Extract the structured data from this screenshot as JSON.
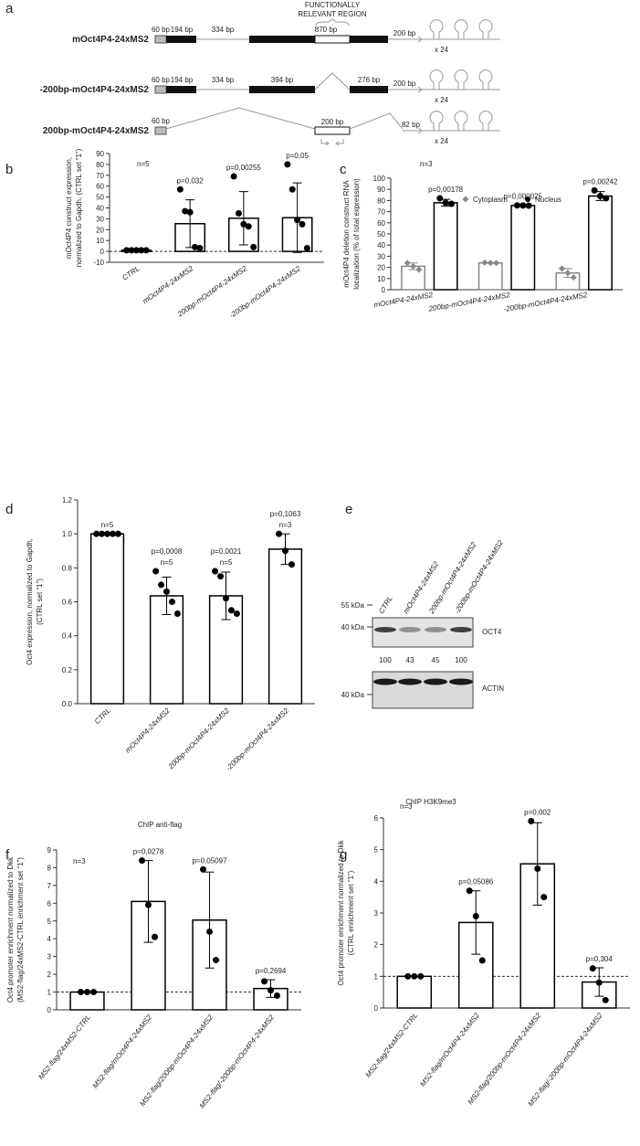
{
  "diagram": {
    "panel": "a",
    "region_label": [
      "FUNCTIONALLY",
      "RELEVANT REGION"
    ],
    "constructs": [
      {
        "name": "mOct4P4-24xMS2",
        "segments": [
          "60 bp",
          "194 bp",
          "334 bp",
          "870 bp",
          "200 bp"
        ],
        "repeat": "x 24"
      },
      {
        "name": "-200bp-mOct4P4-24xMS2",
        "segments": [
          "60 bp",
          "194 bp",
          "334 bp",
          "394 bp",
          "276 bp",
          "200 bp"
        ],
        "repeat": "x 24"
      },
      {
        "name": "200bp-mOct4P4-24xMS2",
        "segments": [
          "60 bp",
          "200 bp",
          "82 bp"
        ],
        "repeat": "x 24"
      }
    ]
  },
  "blot": {
    "panel": "e",
    "lanes": [
      "CTRL",
      "mOct4P4-24xMS2",
      "200bp-mOct4P4-24xMS2",
      "-200bp-mOct4P4-24xMS2"
    ],
    "markers": [
      "55 kDa",
      "40 kDa",
      "40 kDa"
    ],
    "bands": [
      "OCT4",
      "ACTIN"
    ],
    "quant": [
      100,
      43,
      45,
      100
    ]
  },
  "chart_data": [
    {
      "type": "bar",
      "panel": "b",
      "n_label": "n=5",
      "ylabel": [
        "mOct4P4 construct expression,",
        "normalized to Gapdh, (CTRL set “1”)"
      ],
      "categories": [
        "CTRL",
        "mOct4P4-24xMS2",
        "200bp-mOct4P4-24xMS2",
        "-200bp-mOct4P4-24xMS2"
      ],
      "values": [
        1,
        25.5,
        30.5,
        31
      ],
      "errors": [
        0,
        22,
        24.5,
        32
      ],
      "points": [
        [
          1,
          1,
          1,
          1,
          1
        ],
        [
          57,
          37,
          36,
          4,
          3
        ],
        [
          69,
          35,
          25,
          23,
          4
        ],
        [
          80,
          57,
          29,
          25,
          3
        ]
      ],
      "p_values": [
        null,
        "p=0,032",
        "p=0,00255",
        "p=0,05"
      ],
      "color": "#000000",
      "reference_line": 0,
      "ylim": [
        -10,
        90
      ],
      "yticks": [
        -10,
        0,
        10,
        20,
        30,
        40,
        50,
        60,
        70,
        80,
        90
      ]
    },
    {
      "type": "bar",
      "panel": "c",
      "n_label": "n=3",
      "ylabel": [
        "mOct4P4 deletion construct RNA",
        "localization (% of total expression)"
      ],
      "categories": [
        "mOct4P4-24xMS2",
        "200bp-mOct4P4-24xMS2",
        "-200bp-mOct4P4-24xMS2"
      ],
      "series": [
        {
          "name": "Cytoplasm",
          "color": "#888888",
          "marker": "diamond",
          "values": [
            21,
            24,
            15
          ],
          "errors": [
            3,
            0.3,
            4
          ],
          "points": [
            [
              24,
              21,
              18
            ],
            [
              24.3,
              24,
              24
            ],
            [
              19,
              15,
              11
            ]
          ],
          "p_values": [
            null,
            null,
            null
          ]
        },
        {
          "name": "Nucleus",
          "color": "#000000",
          "marker": "circle",
          "values": [
            78,
            75.5,
            84
          ],
          "errors": [
            3,
            0.3,
            4
          ],
          "points": [
            [
              82,
              78,
              77
            ],
            [
              75.6,
              75.5,
              75.4
            ],
            [
              89,
              84,
              82
            ]
          ],
          "p_values": [
            "p=0,00178",
            "p=0,000025",
            "p=0,00242"
          ]
        }
      ],
      "ylim": [
        0,
        100
      ],
      "yticks": [
        0,
        10,
        20,
        30,
        40,
        50,
        60,
        70,
        80,
        90,
        100
      ]
    },
    {
      "type": "bar",
      "panel": "d",
      "ylabel": [
        "Oct4 expression, normalized to Gapdh,",
        "(CTRL set “1”)"
      ],
      "categories": [
        "CTRL",
        "mOct4P4-24xMS2",
        "200bp-mOct4P4-24xMS2",
        "-200bp-mOct4P4-24xMS2"
      ],
      "values": [
        1,
        0.635,
        0.635,
        0.91
      ],
      "errors": [
        0,
        0.11,
        0.14,
        0.09
      ],
      "points": [
        [
          1,
          1,
          1,
          1,
          1
        ],
        [
          0.78,
          0.7,
          0.66,
          0.6,
          0.53
        ],
        [
          0.78,
          0.75,
          0.62,
          0.55,
          0.53
        ],
        [
          1.0,
          0.9,
          0.82
        ]
      ],
      "p_values": [
        null,
        "p=0,0008",
        "p=0,0021",
        "p=0,1063"
      ],
      "n_labels": [
        "n=5",
        "n=5",
        "n=5",
        "n=3"
      ],
      "color": "#000000",
      "ylim": [
        0,
        1.2
      ],
      "yticks": [
        {
          "value": 0,
          "label": "0.0"
        },
        {
          "value": 0.2,
          "label": "0.2"
        },
        {
          "value": 0.4,
          "label": "0.4"
        },
        {
          "value": 0.6,
          "label": "0.6"
        },
        {
          "value": 0.8,
          "label": "0.8"
        },
        {
          "value": 1,
          "label": "1.0"
        },
        {
          "value": 1.2,
          "label": "1.2"
        }
      ]
    },
    {
      "type": "bar",
      "panel": "f",
      "title": "ChIP anti-flag",
      "n_label": "n=3",
      "ylabel": [
        "Oct4 promoter enrichment normalized to Dkk",
        "(MS2-flag/24xMS2-CTRL enrichment set “1”)"
      ],
      "categories": [
        "MS2-flag/24xMS2-CTRL",
        "MS2-flag/mOct4P4-24xMS2",
        "MS2-flag/200bp-mOct4P4-24xMS2",
        "MS2-flag/-200bp-mOct4P4-24xMS2"
      ],
      "values": [
        1,
        6.1,
        5.05,
        1.2
      ],
      "errors": [
        0,
        2.3,
        2.7,
        0.5
      ],
      "points": [
        [
          1,
          1,
          1
        ],
        [
          8.4,
          5.9,
          4.1
        ],
        [
          7.9,
          4.4,
          2.8
        ],
        [
          1.6,
          1.1,
          0.8
        ]
      ],
      "p_values": [
        null,
        "p=0,0278",
        "p=0,05097",
        "p=0,2694"
      ],
      "color": "#000000",
      "reference_line": 1,
      "ylim": [
        0,
        9
      ],
      "yticks": [
        0,
        1,
        2,
        3,
        4,
        5,
        6,
        7,
        8,
        9
      ]
    },
    {
      "type": "bar",
      "panel": "g",
      "title": "ChIP H3K9me3",
      "n_label": "n=3",
      "ylabel": [
        "Oct4 promoter enrichment normalized to Dkk",
        "(CTRL enrichment set “1”)"
      ],
      "categories": [
        "MS2-flag/24xMS2-CTRL",
        "MS2-flag/mOct4P4-24xMS2",
        "MS2-flag/200bp-mOct4P4-24xMS2",
        "MS2-flag/-200bp-mOct4P4-24xMS2"
      ],
      "values": [
        1,
        2.7,
        4.55,
        0.82
      ],
      "errors": [
        0,
        1.0,
        1.3,
        0.45
      ],
      "points": [
        [
          1,
          1,
          1
        ],
        [
          3.7,
          2.9,
          1.5
        ],
        [
          5.9,
          4.4,
          3.5
        ],
        [
          1.25,
          0.8,
          0.25
        ]
      ],
      "p_values": [
        null,
        "p=0,05086",
        "p=0,002",
        "p=0,304"
      ],
      "color": "#000000",
      "reference_line": 1,
      "ylim": [
        0,
        6
      ],
      "yticks": [
        0,
        1,
        2,
        3,
        4,
        5,
        6
      ]
    }
  ]
}
